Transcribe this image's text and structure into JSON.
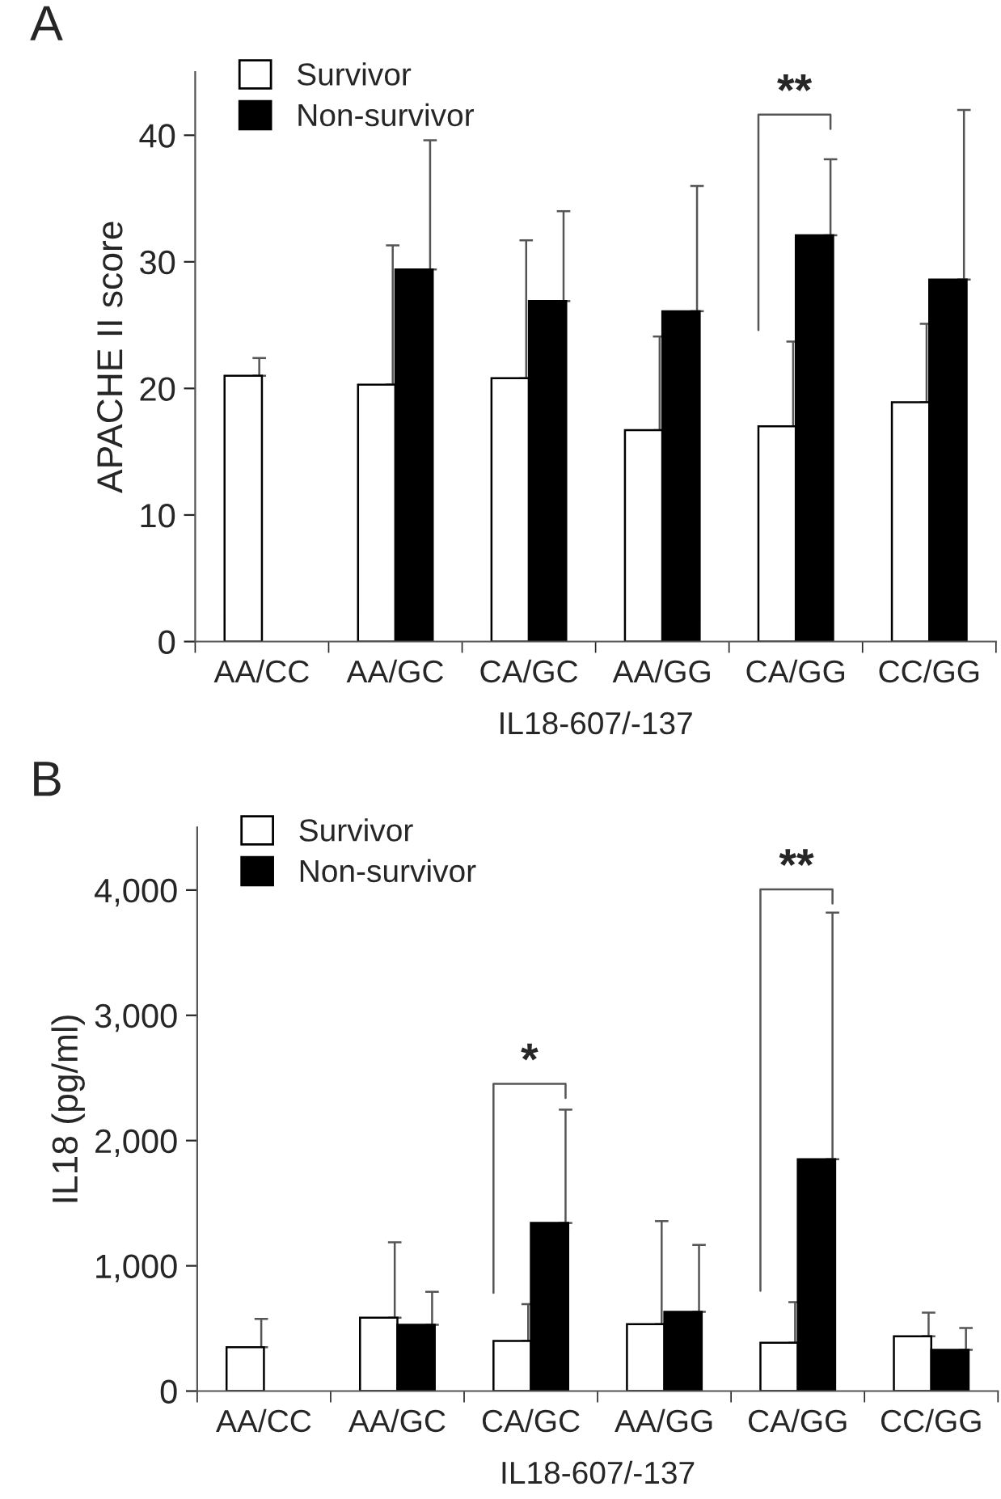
{
  "chart_data": [
    {
      "type": "bar",
      "xlabel": "IL18-607/-137",
      "ylabel": "APACHE II score",
      "categories": [
        "AA/CC",
        "AA/GC",
        "CA/GC",
        "AA/GG",
        "CA/GG",
        "CC/GG"
      ],
      "series": [
        {
          "name": "Survivor",
          "color": "#ffffff",
          "values": [
            21.0,
            20.3,
            20.8,
            16.7,
            17.0,
            18.9
          ],
          "errors": [
            [
              21.0,
              22.4
            ],
            [
              20.3,
              31.3
            ],
            [
              20.8,
              31.7
            ],
            [
              16.7,
              24.1
            ],
            [
              17.0,
              23.7
            ],
            [
              18.9,
              25.1
            ]
          ]
        },
        {
          "name": "Non-survivor",
          "color": "#000000",
          "values": [
            null,
            29.4,
            26.9,
            26.1,
            32.1,
            28.6
          ],
          "errors": [
            null,
            [
              29.4,
              39.6
            ],
            [
              26.9,
              34.0
            ],
            [
              26.1,
              36.0
            ],
            [
              32.1,
              38.1
            ],
            [
              28.6,
              42.0
            ]
          ]
        }
      ],
      "ylim": [
        0,
        45
      ],
      "yticks": [
        0,
        10,
        20,
        30,
        40
      ],
      "grid": false,
      "legend": "top left",
      "annotations": [
        "A",
        "**"
      ]
    },
    {
      "type": "bar",
      "xlabel": "IL18-607/-137",
      "ylabel": "IL18 (pg/ml)",
      "categories": [
        "AA/CC",
        "AA/GC",
        "CA/GC",
        "AA/GG",
        "CA/GG",
        "CC/GG"
      ],
      "series": [
        {
          "name": "Survivor",
          "color": "#ffffff",
          "values": [
            350,
            586,
            401,
            535,
            386,
            437
          ],
          "errors": [
            [
              350,
              576
            ],
            [
              586,
              1188
            ],
            [
              401,
              694
            ],
            [
              535,
              1357
            ],
            [
              386,
              710
            ],
            [
              437,
              627
            ]
          ]
        },
        {
          "name": "Non-survivor",
          "color": "#000000",
          "values": [
            null,
            530,
            1342,
            632,
            1851,
            329
          ],
          "errors": [
            null,
            [
              530,
              792
            ],
            [
              1342,
              2247
            ],
            [
              632,
              1167
            ],
            [
              1851,
              3820
            ],
            [
              329,
              504
            ]
          ]
        }
      ],
      "ylim": [
        0,
        4500
      ],
      "yticks": [
        {
          "value": 0,
          "label": "0"
        },
        {
          "value": 1000,
          "label": "1,000"
        },
        {
          "value": 2000,
          "label": "2,000"
        },
        {
          "value": 3000,
          "label": "3,000"
        },
        {
          "value": 4000,
          "label": "4,000"
        }
      ],
      "grid": false,
      "legend": "top left",
      "annotations": [
        "B",
        "*",
        "**"
      ]
    }
  ]
}
